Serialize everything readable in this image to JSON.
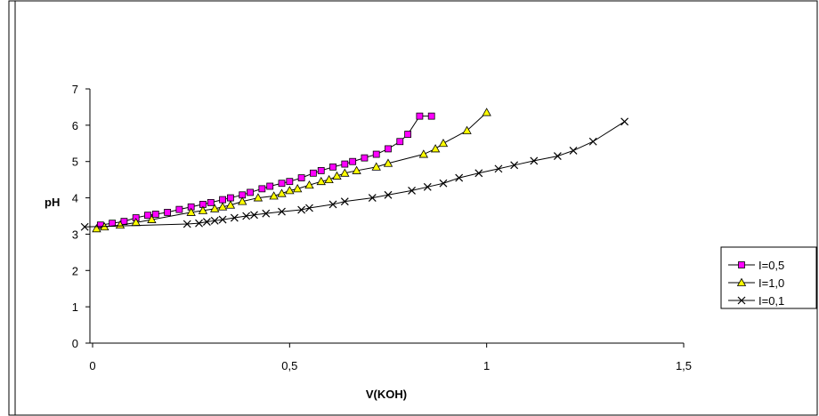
{
  "chart_data": {
    "type": "line",
    "title": "",
    "xlabel": "V(KOH)",
    "ylabel": "pH",
    "xlim": [
      0,
      1.5
    ],
    "ylim": [
      0,
      7
    ],
    "x_ticks": [
      0,
      0.5,
      1,
      1.5
    ],
    "x_tick_labels": [
      "0",
      "0,5",
      "1",
      "1,5"
    ],
    "y_ticks": [
      0,
      1,
      2,
      3,
      4,
      5,
      6,
      7
    ],
    "y_tick_labels": [
      "0",
      "1",
      "2",
      "3",
      "4",
      "5",
      "6",
      "7"
    ],
    "grid": false,
    "legend_position": "right",
    "series": [
      {
        "name": "I=0,5",
        "color": "#ff00ff",
        "marker": "square",
        "x": [
          0.02,
          0.05,
          0.08,
          0.11,
          0.14,
          0.16,
          0.19,
          0.22,
          0.25,
          0.28,
          0.3,
          0.33,
          0.35,
          0.38,
          0.4,
          0.43,
          0.45,
          0.48,
          0.5,
          0.53,
          0.56,
          0.58,
          0.61,
          0.64,
          0.66,
          0.69,
          0.72,
          0.75,
          0.78,
          0.8,
          0.83,
          0.86
        ],
        "y": [
          3.25,
          3.3,
          3.35,
          3.45,
          3.52,
          3.55,
          3.6,
          3.68,
          3.75,
          3.82,
          3.87,
          3.95,
          4.0,
          4.08,
          4.15,
          4.25,
          4.32,
          4.4,
          4.45,
          4.55,
          4.68,
          4.75,
          4.85,
          4.93,
          5.0,
          5.1,
          5.2,
          5.35,
          5.55,
          5.75,
          6.25,
          6.25
        ]
      },
      {
        "name": "I=1,0",
        "color": "#ffff00",
        "marker": "triangle",
        "x": [
          0.01,
          0.03,
          0.07,
          0.11,
          0.15,
          0.25,
          0.28,
          0.31,
          0.33,
          0.35,
          0.38,
          0.42,
          0.46,
          0.48,
          0.5,
          0.52,
          0.55,
          0.58,
          0.6,
          0.62,
          0.64,
          0.67,
          0.72,
          0.75,
          0.84,
          0.87,
          0.89,
          0.95,
          1.0
        ],
        "y": [
          3.15,
          3.2,
          3.25,
          3.32,
          3.4,
          3.6,
          3.65,
          3.7,
          3.75,
          3.8,
          3.9,
          4.0,
          4.05,
          4.12,
          4.2,
          4.25,
          4.35,
          4.45,
          4.5,
          4.6,
          4.68,
          4.75,
          4.85,
          4.95,
          5.2,
          5.35,
          5.5,
          5.85,
          6.35
        ]
      },
      {
        "name": "I=0,1",
        "color": "#000000",
        "marker": "x",
        "x": [
          -0.02,
          0.24,
          0.27,
          0.29,
          0.31,
          0.33,
          0.36,
          0.39,
          0.41,
          0.44,
          0.48,
          0.53,
          0.55,
          0.61,
          0.64,
          0.71,
          0.75,
          0.81,
          0.85,
          0.89,
          0.93,
          0.98,
          1.03,
          1.07,
          1.12,
          1.18,
          1.22,
          1.27,
          1.35
        ],
        "y": [
          3.2,
          3.28,
          3.3,
          3.34,
          3.37,
          3.4,
          3.45,
          3.5,
          3.53,
          3.57,
          3.62,
          3.67,
          3.72,
          3.82,
          3.9,
          4.0,
          4.08,
          4.2,
          4.3,
          4.4,
          4.55,
          4.68,
          4.8,
          4.9,
          5.02,
          5.15,
          5.3,
          5.55,
          6.1
        ]
      }
    ]
  }
}
